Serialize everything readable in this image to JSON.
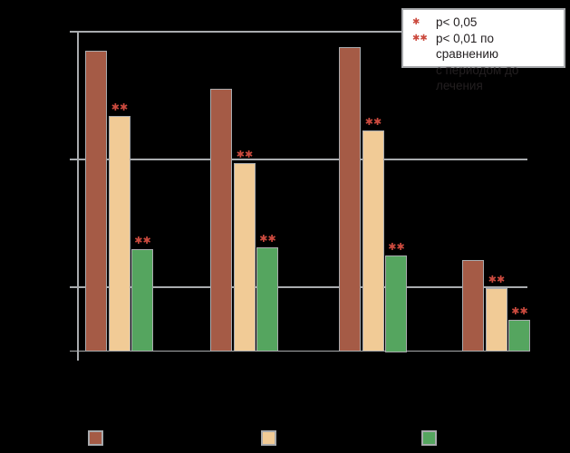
{
  "figure": {
    "background": "#000000"
  },
  "chart_data": {
    "type": "bar",
    "title": "",
    "categories": [
      "",
      "",
      "",
      ""
    ],
    "x_tick_labels_visible": false,
    "y_tick_labels_visible": false,
    "series": [
      {
        "name": "brown",
        "color": "#A55B46",
        "values": [
          4.7,
          4.1,
          4.76,
          1.42
        ],
        "significance": [
          "",
          "",
          "",
          ""
        ]
      },
      {
        "name": "tan",
        "color": "#F1CB96",
        "values": [
          3.68,
          2.95,
          3.46,
          0.99
        ],
        "significance": [
          "**",
          "**",
          "**",
          "**"
        ]
      },
      {
        "name": "green",
        "color": "#55A55F",
        "values": [
          1.6,
          1.62,
          1.5,
          0.49
        ],
        "significance": [
          "**",
          "**",
          "**",
          "**"
        ]
      }
    ],
    "ylim": [
      0,
      5.0
    ],
    "gridline_values": [
      1,
      3,
      5
    ],
    "grid": true,
    "axis_color": "#A9ABAE",
    "bar_outline_color": "#A9ABAE",
    "significance_marker_color": "#CB4A3E",
    "legend_position": "top-right"
  },
  "annotation_legend": {
    "background": "#FFFFFF",
    "border_color": "#A7A9AC",
    "text_color": "#231F20",
    "marker_color": "#CB4A3E",
    "entries": [
      {
        "symbol": "*",
        "label_lines": [
          "p< 0,05"
        ]
      },
      {
        "symbol": "**",
        "label_lines": [
          "p< 0,01 по сравнению",
          "с периодом до лечения"
        ]
      }
    ]
  },
  "bottom_legend": {
    "swatches": [
      {
        "name": "swatch-brown",
        "color": "#A55B46"
      },
      {
        "name": "swatch-tan",
        "color": "#F1CB96"
      },
      {
        "name": "swatch-green",
        "color": "#55A55F"
      }
    ]
  }
}
